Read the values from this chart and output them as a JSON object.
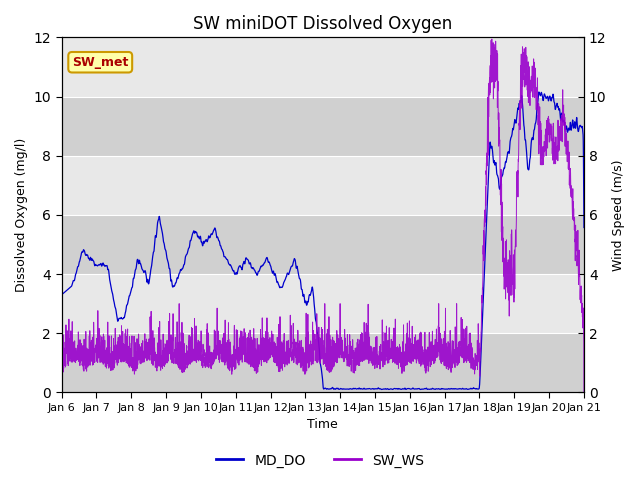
{
  "title": "SW miniDOT Dissolved Oxygen",
  "ylabel_left": "Dissolved Oxygen (mg/l)",
  "ylabel_right": "Wind Speed (m/s)",
  "xlabel": "Time",
  "ylim_left": [
    0,
    12
  ],
  "ylim_right": [
    0,
    12
  ],
  "yticks_left": [
    0,
    2,
    4,
    6,
    8,
    10,
    12
  ],
  "yticks_right": [
    0,
    2,
    4,
    6,
    8,
    10,
    12
  ],
  "xtick_labels": [
    "Jan 6",
    "Jan 7",
    "Jan 8",
    "Jan 9",
    "Jan 10",
    "Jan 11",
    "Jan 12",
    "Jan 13",
    "Jan 14",
    "Jan 15",
    "Jan 16",
    "Jan 17",
    "Jan 18",
    "Jan 19",
    "Jan 20",
    "Jan 21"
  ],
  "color_DO": "#0000cc",
  "color_WS": "#9900cc",
  "legend_labels": [
    "MD_DO",
    "SW_WS"
  ],
  "annotation_text": "SW_met",
  "annotation_color": "#aa0000",
  "annotation_bg": "#ffffaa",
  "annotation_border": "#cc9900",
  "bg_color_light": "#e8e8e8",
  "bg_color_dark": "#d0d0d0",
  "grid_color": "#ffffff",
  "title_fontsize": 12,
  "label_fontsize": 9,
  "tick_fontsize": 8
}
